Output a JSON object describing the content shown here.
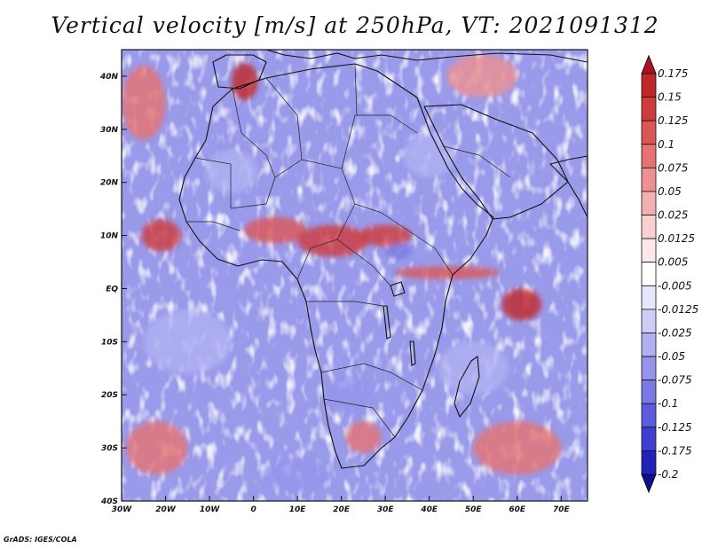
{
  "title": "Vertical velocity [m/s] at 250hPa, VT: 2021091312",
  "credit": "GrADS: IGES/COLA",
  "map": {
    "lon_range": [
      -30,
      76
    ],
    "lat_range": [
      -40,
      45
    ],
    "lat_ticks": [
      {
        "lat": 40,
        "label": "40N"
      },
      {
        "lat": 30,
        "label": "30N"
      },
      {
        "lat": 20,
        "label": "20N"
      },
      {
        "lat": 10,
        "label": "10N"
      },
      {
        "lat": 0,
        "label": "EQ"
      },
      {
        "lat": -10,
        "label": "10S"
      },
      {
        "lat": -20,
        "label": "20S"
      },
      {
        "lat": -30,
        "label": "30S"
      },
      {
        "lat": -40,
        "label": "40S"
      }
    ],
    "lon_ticks": [
      {
        "lon": -30,
        "label": "30W"
      },
      {
        "lon": -20,
        "label": "20W"
      },
      {
        "lon": -10,
        "label": "10W"
      },
      {
        "lon": 0,
        "label": "0"
      },
      {
        "lon": 10,
        "label": "10E"
      },
      {
        "lon": 20,
        "label": "20E"
      },
      {
        "lon": 30,
        "label": "30E"
      },
      {
        "lon": 40,
        "label": "40E"
      },
      {
        "lon": 50,
        "label": "50E"
      },
      {
        "lon": 60,
        "label": "60E"
      },
      {
        "lon": 70,
        "label": "70E"
      }
    ]
  },
  "colorbar": {
    "labels": [
      "0.175",
      "0.15",
      "0.125",
      "0.1",
      "0.075",
      "0.05",
      "0.025",
      "0.0125",
      "0.005",
      "-0.005",
      "-0.0125",
      "-0.025",
      "-0.05",
      "-0.075",
      "-0.1",
      "-0.125",
      "-0.175",
      "-0.2"
    ],
    "colors": [
      "#b01020",
      "#c02828",
      "#d03c3c",
      "#dc5656",
      "#e67272",
      "#ee9090",
      "#f4b0b0",
      "#f9d0d0",
      "#fde8e8",
      "#ffffff",
      "#e6e6fc",
      "#cdcdf8",
      "#b0b0f2",
      "#9494ec",
      "#7a7ae4",
      "#5c5cdc",
      "#3e3ed0",
      "#2222b8",
      "#0e0e8e"
    ]
  },
  "features": {
    "highlights": [
      {
        "lon": -21,
        "lat": 10,
        "rx": 4.5,
        "ry": 3,
        "level": 2
      },
      {
        "lon": 5,
        "lat": 11,
        "rx": 7,
        "ry": 2.5,
        "level": 3
      },
      {
        "lon": 18,
        "lat": 9,
        "rx": 8,
        "ry": 3,
        "level": 2
      },
      {
        "lon": -2,
        "lat": 39,
        "rx": 3,
        "ry": 3.5,
        "level": 1
      },
      {
        "lon": 61,
        "lat": -3,
        "rx": 4.5,
        "ry": 3,
        "level": 1
      },
      {
        "lon": 44,
        "lat": 3,
        "rx": 12,
        "ry": 1.2,
        "level": 3
      },
      {
        "lon": -22,
        "lat": -30,
        "rx": 7,
        "ry": 5,
        "level": 4
      },
      {
        "lon": 60,
        "lat": -30,
        "rx": 10,
        "ry": 5,
        "level": 4
      },
      {
        "lon": 52,
        "lat": 40,
        "rx": 8,
        "ry": 4,
        "level": 5
      },
      {
        "lon": -25,
        "lat": 35,
        "rx": 5,
        "ry": 7,
        "level": 4
      },
      {
        "lon": 30,
        "lat": 10,
        "rx": 6,
        "ry": 2,
        "level": 2
      },
      {
        "lon": 25,
        "lat": -28,
        "rx": 4,
        "ry": 3,
        "level": 4
      }
    ],
    "lows": [
      {
        "lon": 33,
        "lat": 7,
        "rx": 3,
        "ry": 1.5,
        "level": 14
      },
      {
        "lon": 22,
        "lat": -20,
        "rx": 5,
        "ry": 4,
        "level": 13
      },
      {
        "lon": -5,
        "lat": 22,
        "rx": 6,
        "ry": 4,
        "level": 12
      },
      {
        "lon": 50,
        "lat": -15,
        "rx": 8,
        "ry": 5,
        "level": 12
      },
      {
        "lon": -15,
        "lat": -10,
        "rx": 10,
        "ry": 6,
        "level": 12
      },
      {
        "lon": 10,
        "lat": -35,
        "rx": 8,
        "ry": 3,
        "level": 13
      },
      {
        "lon": 40,
        "lat": 25,
        "rx": 6,
        "ry": 4,
        "level": 12
      }
    ]
  }
}
